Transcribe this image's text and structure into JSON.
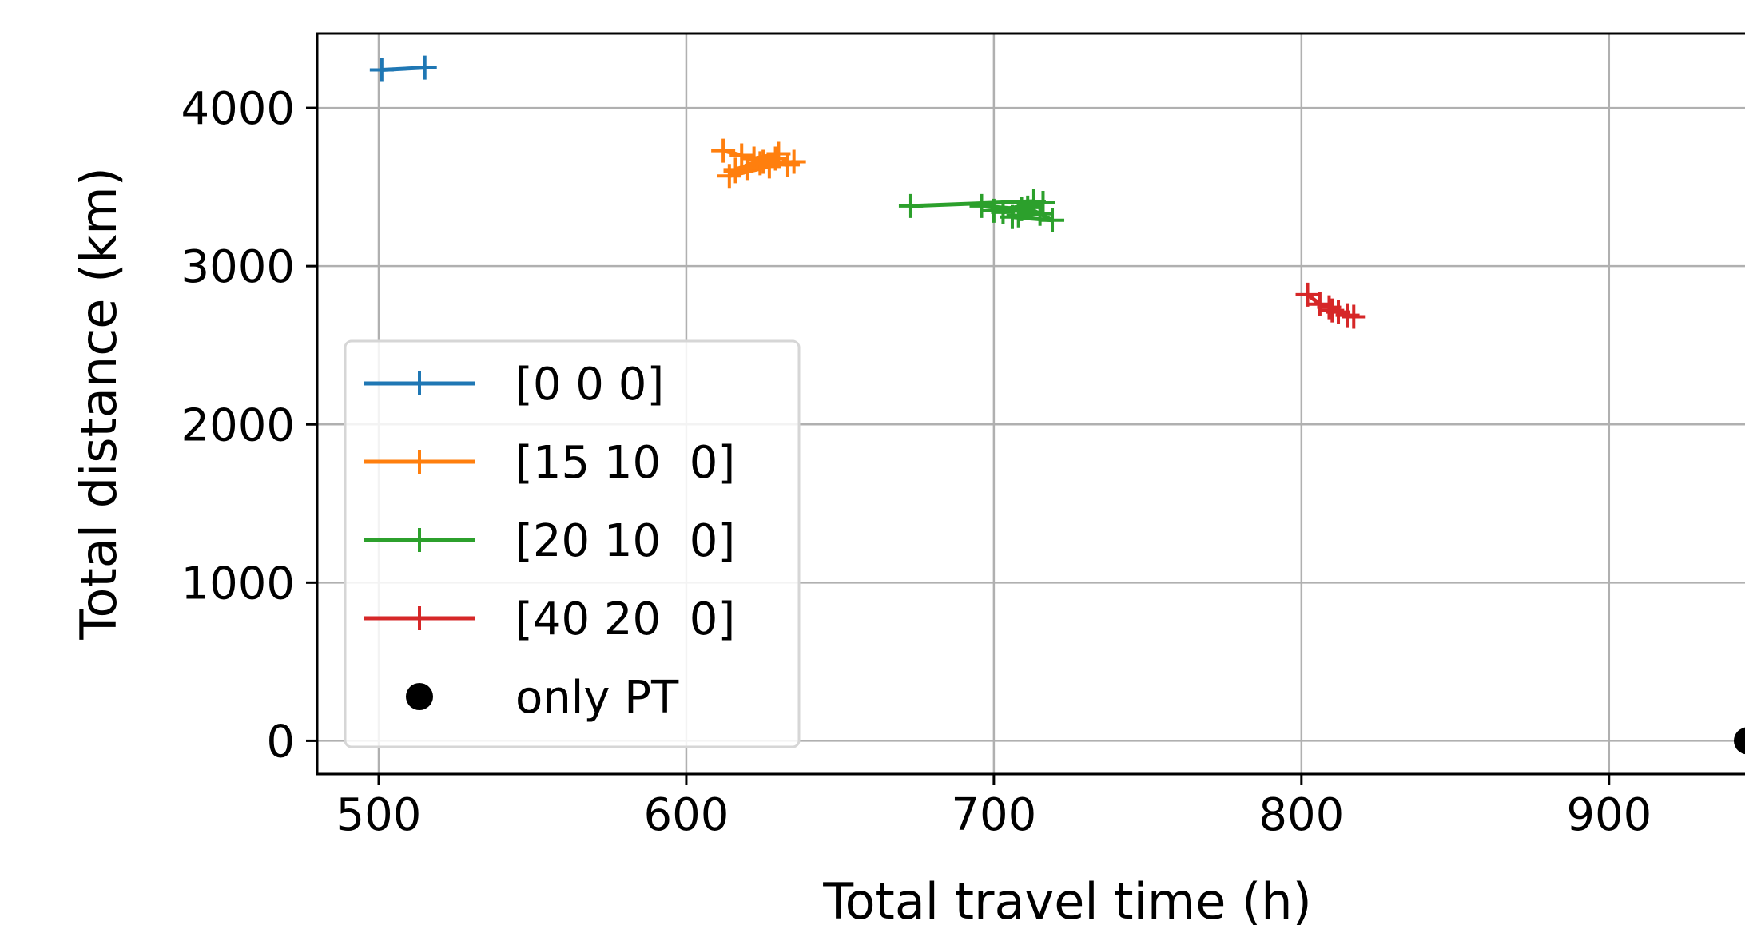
{
  "chart_data": {
    "type": "line",
    "title": "",
    "xlabel": "Total travel time (h)",
    "ylabel": "Total distance (km)",
    "xlim": [
      480,
      945
    ],
    "ylim": [
      -210,
      4470
    ],
    "xticks": [
      500,
      600,
      700,
      800,
      900
    ],
    "yticks": [
      0,
      1000,
      2000,
      3000,
      4000
    ],
    "xtick_labels": [
      "500",
      "600",
      "700",
      "800",
      "900"
    ],
    "ytick_labels": [
      "0",
      "1000",
      "2000",
      "3000",
      "4000"
    ],
    "grid": true,
    "legend_position": "lower-left",
    "series": [
      {
        "name": "[0 0 0]",
        "color": "#1f77b4",
        "marker": "plus",
        "x": [
          501,
          515
        ],
        "y": [
          4240,
          4255
        ]
      },
      {
        "name": "[15 10  0]",
        "color": "#ff7f0e",
        "marker": "plus",
        "x": [
          612,
          622,
          630,
          616,
          625,
          633,
          618,
          627,
          614,
          629,
          620,
          635,
          616,
          624
        ],
        "y": [
          3730,
          3680,
          3710,
          3610,
          3660,
          3640,
          3700,
          3630,
          3570,
          3680,
          3620,
          3660,
          3600,
          3650
        ]
      },
      {
        "name": "[20 10  0]",
        "color": "#2ca02c",
        "marker": "plus",
        "x": [
          673,
          713,
          703,
          709,
          696,
          715,
          706,
          719,
          711,
          700,
          716,
          708
        ],
        "y": [
          3380,
          3410,
          3340,
          3360,
          3380,
          3330,
          3310,
          3290,
          3370,
          3350,
          3400,
          3320
        ]
      },
      {
        "name": "[40 20  0]",
        "color": "#d62728",
        "marker": "plus",
        "x": [
          802,
          806,
          809,
          812,
          815,
          817,
          810
        ],
        "y": [
          2820,
          2760,
          2740,
          2710,
          2690,
          2680,
          2720
        ]
      },
      {
        "name": "only PT",
        "color": "#000000",
        "marker": "dot",
        "x": [
          945
        ],
        "y": [
          0
        ]
      }
    ]
  }
}
